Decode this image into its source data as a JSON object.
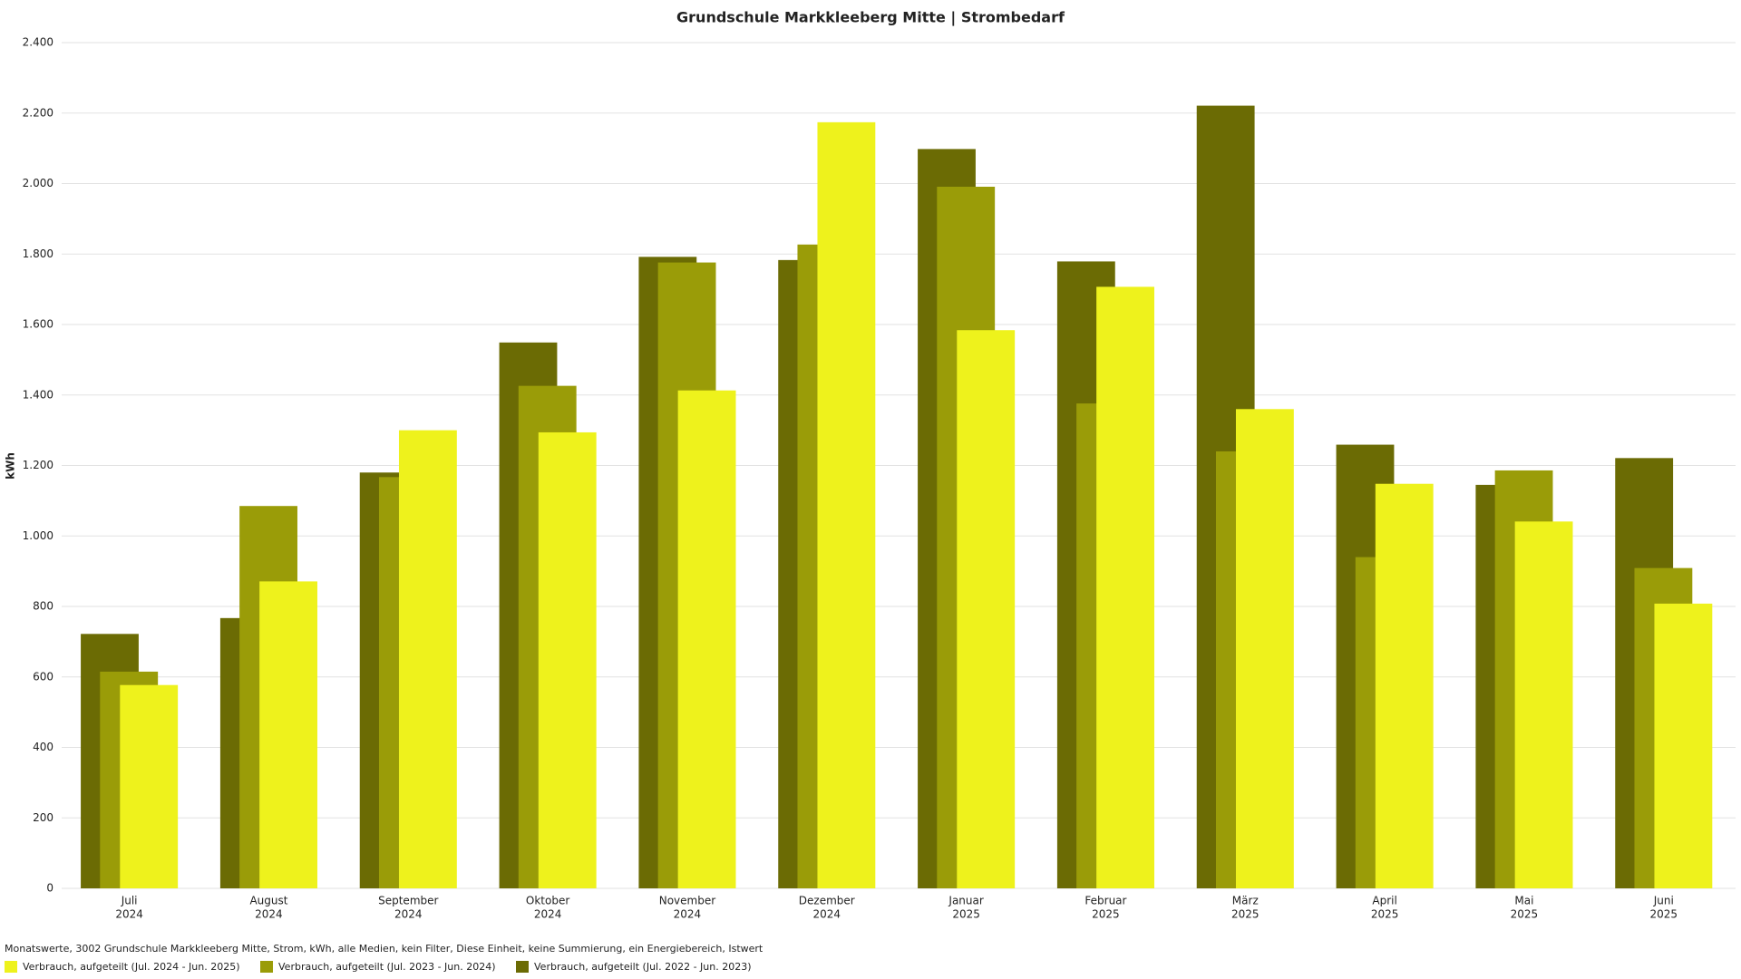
{
  "chart_data": {
    "type": "bar",
    "title": "Grundschule Markkleeberg Mitte | Strombedarf",
    "y_label": "kWh",
    "footnote": "Monatswerte, 3002 Grundschule Markkleeberg Mitte, Strom, kWh, alle Medien, kein Filter, Diese Einheit, keine Summierung, ein Energiebereich, Istwert",
    "categories": [
      [
        "Juli",
        "2024"
      ],
      [
        "August",
        "2024"
      ],
      [
        "September",
        "2024"
      ],
      [
        "Oktober",
        "2024"
      ],
      [
        "November",
        "2024"
      ],
      [
        "Dezember",
        "2024"
      ],
      [
        "Januar",
        "2025"
      ],
      [
        "Februar",
        "2025"
      ],
      [
        "März",
        "2025"
      ],
      [
        "April",
        "2025"
      ],
      [
        "Mai",
        "2025"
      ],
      [
        "Juni",
        "2025"
      ]
    ],
    "series": [
      {
        "name": "Verbrauch, aufgeteilt (Jul. 2024 - Jun. 2025)",
        "color": "#eef21c",
        "values": [
          577,
          871,
          1300,
          1294,
          1413,
          2174,
          1584,
          1707,
          1360,
          1148,
          1041,
          808
        ]
      },
      {
        "name": "Verbrauch, aufgeteilt (Jul. 2023 - Jun. 2024)",
        "color": "#9a9c08",
        "values": [
          615,
          1085,
          1167,
          1426,
          1776,
          1827,
          1991,
          1376,
          1240,
          940,
          1186,
          909
        ]
      },
      {
        "name": "Verbrauch, aufgeteilt (Jul. 2022 - Jun. 2023)",
        "color": "#6b6b04",
        "values": [
          722,
          767,
          1180,
          1549,
          1792,
          1783,
          2098,
          1779,
          2221,
          1259,
          1145,
          1221
        ]
      }
    ],
    "ylim": [
      0,
      2400
    ],
    "yticks": [
      0,
      200,
      400,
      600,
      800,
      {
        "value": 1000,
        "label": "1.000"
      },
      {
        "value": 1200,
        "label": "1.200"
      },
      {
        "value": 1400,
        "label": "1.400"
      },
      {
        "value": 1600,
        "label": "1.600"
      },
      {
        "value": 1800,
        "label": "1.800"
      },
      {
        "value": 2000,
        "label": "2.000"
      },
      {
        "value": 2200,
        "label": "2.200"
      },
      {
        "value": 2400,
        "label": "2.400"
      }
    ],
    "grid": true
  }
}
